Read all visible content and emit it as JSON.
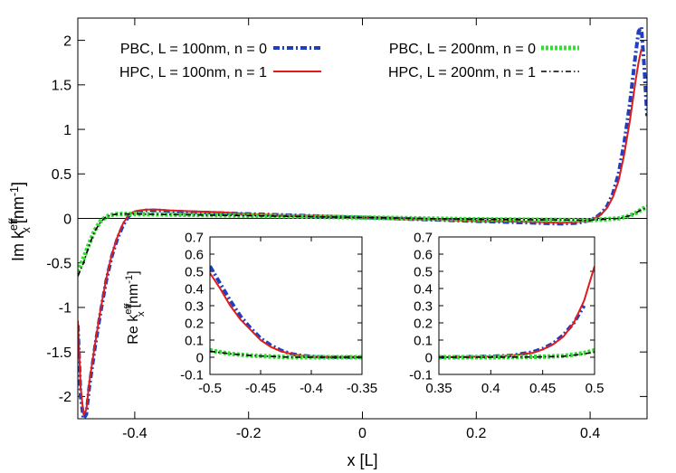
{
  "chart_data": {
    "main": {
      "type": "line",
      "xlabel": "x [L]",
      "ylabel": "Im k",
      "ylabel_sup": "eff",
      "ylabel_sub": "x",
      "ylabel_unit": "[nm",
      "ylabel_unit_sup": "-1",
      "ylabel_unit_close": "]",
      "xlim": [
        -0.5,
        0.5
      ],
      "ylim": [
        -2.25,
        2.25
      ],
      "xticks": [
        -0.4,
        -0.2,
        0,
        0.2,
        0.4
      ],
      "xtick_labels": [
        "-0.4",
        "-0.2",
        "0",
        "0.2",
        "0.4"
      ],
      "yticks": [
        -2,
        -1.5,
        -1,
        -0.5,
        0,
        0.5,
        1,
        1.5,
        2
      ],
      "ytick_labels": [
        "-2",
        "-1.5",
        "-1",
        "-0.5",
        "0",
        "0.5",
        "1",
        "1.5",
        "2"
      ],
      "zero_line": true,
      "legend_placement": "top",
      "series": [
        {
          "name": "PBC, L = 100nm, n = 0",
          "color": "#1f3fbf",
          "style": "dash-dot-thick",
          "x": [
            -0.5,
            -0.495,
            -0.49,
            -0.485,
            -0.48,
            -0.47,
            -0.46,
            -0.45,
            -0.44,
            -0.43,
            -0.42,
            -0.41,
            -0.4,
            -0.38,
            -0.36,
            -0.34,
            -0.3,
            -0.25,
            -0.2,
            -0.1,
            0,
            0.1,
            0.2,
            0.3,
            0.35,
            0.38,
            0.4,
            0.41,
            0.42,
            0.43,
            0.44,
            0.45,
            0.46,
            0.47,
            0.48,
            0.485,
            0.49,
            0.495,
            0.5
          ],
          "y": [
            -1.2,
            -2.0,
            -2.25,
            -2.2,
            -1.9,
            -1.45,
            -1.05,
            -0.7,
            -0.42,
            -0.22,
            -0.07,
            0.03,
            0.07,
            0.09,
            0.09,
            0.08,
            0.07,
            0.06,
            0.05,
            0.03,
            0.01,
            -0.01,
            -0.03,
            -0.05,
            -0.06,
            -0.05,
            -0.02,
            0.01,
            0.06,
            0.14,
            0.28,
            0.5,
            0.85,
            1.3,
            1.85,
            2.1,
            2.15,
            1.7,
            1.15
          ]
        },
        {
          "name": "HPC, L = 100nm, n = 1",
          "color": "#e01c1c",
          "style": "solid",
          "x": [
            -0.5,
            -0.495,
            -0.49,
            -0.485,
            -0.48,
            -0.47,
            -0.46,
            -0.45,
            -0.44,
            -0.43,
            -0.42,
            -0.41,
            -0.4,
            -0.38,
            -0.36,
            -0.34,
            -0.3,
            -0.25,
            -0.2,
            -0.1,
            0,
            0.1,
            0.2,
            0.3,
            0.35,
            0.38,
            0.4,
            0.41,
            0.42,
            0.43,
            0.44,
            0.45,
            0.46,
            0.47,
            0.48,
            0.485,
            0.49
          ],
          "y": [
            -1.15,
            -1.9,
            -2.2,
            -2.15,
            -1.85,
            -1.42,
            -1.02,
            -0.68,
            -0.4,
            -0.2,
            -0.05,
            0.04,
            0.08,
            0.1,
            0.1,
            0.09,
            0.08,
            0.07,
            0.05,
            0.03,
            0.01,
            -0.01,
            -0.03,
            -0.04,
            -0.05,
            -0.04,
            -0.02,
            0.01,
            0.05,
            0.12,
            0.24,
            0.42,
            0.72,
            1.1,
            1.55,
            1.75,
            1.9
          ]
        },
        {
          "name": "PBC, L = 200nm, n = 0",
          "color": "#33dd33",
          "style": "dotted-thick",
          "x": [
            -0.5,
            -0.49,
            -0.48,
            -0.47,
            -0.46,
            -0.45,
            -0.44,
            -0.43,
            -0.42,
            -0.4,
            -0.3,
            -0.2,
            0,
            0.2,
            0.4,
            0.45,
            0.47,
            0.48,
            0.49,
            0.5
          ],
          "y": [
            -0.6,
            -0.45,
            -0.28,
            -0.13,
            -0.03,
            0.02,
            0.04,
            0.05,
            0.05,
            0.05,
            0.04,
            0.03,
            0.01,
            -0.01,
            -0.02,
            0.0,
            0.03,
            0.06,
            0.1,
            0.13
          ]
        },
        {
          "name": "HPC, L = 200nm, n = 1",
          "color": "#000000",
          "style": "dash-dot",
          "x": [
            -0.5,
            -0.49,
            -0.48,
            -0.47,
            -0.46,
            -0.45,
            -0.44,
            -0.43,
            -0.42,
            -0.4,
            -0.3,
            -0.2,
            0,
            0.2,
            0.4,
            0.45,
            0.47,
            0.48,
            0.49,
            0.5
          ],
          "y": [
            -0.65,
            -0.5,
            -0.3,
            -0.14,
            -0.04,
            0.02,
            0.04,
            0.05,
            0.05,
            0.05,
            0.04,
            0.03,
            0.01,
            -0.01,
            -0.02,
            0.0,
            0.03,
            0.06,
            0.1,
            0.12
          ]
        }
      ]
    },
    "inset_left": {
      "type": "line",
      "ylabel": "Re k",
      "ylabel_sup": "eff",
      "ylabel_sub": "x",
      "ylabel_unit": "[nm",
      "ylabel_unit_sup": "-1",
      "ylabel_unit_close": "]",
      "xlim": [
        -0.5,
        -0.35
      ],
      "ylim": [
        -0.1,
        0.7
      ],
      "xticks": [
        -0.5,
        -0.45,
        -0.4,
        -0.35
      ],
      "xtick_labels": [
        "-0.5",
        "-0.45",
        "-0.4",
        "-0.35"
      ],
      "yticks": [
        -0.1,
        0,
        0.1,
        0.2,
        0.3,
        0.4,
        0.5,
        0.6,
        0.7
      ],
      "ytick_labels": [
        "-0.1",
        "0",
        "0.1",
        "0.2",
        "0.3",
        "0.4",
        "0.5",
        "0.6",
        "0.7"
      ],
      "series": [
        {
          "color": "#1f3fbf",
          "style": "dash-dot-thick",
          "x": [
            -0.5,
            -0.49,
            -0.48,
            -0.47,
            -0.46,
            -0.45,
            -0.44,
            -0.43,
            -0.42,
            -0.41,
            -0.4,
            -0.38,
            -0.35
          ],
          "y": [
            0.53,
            0.43,
            0.33,
            0.24,
            0.17,
            0.11,
            0.07,
            0.04,
            0.02,
            0.01,
            0.005,
            0.0,
            0.0
          ]
        },
        {
          "color": "#e01c1c",
          "style": "solid",
          "x": [
            -0.5,
            -0.49,
            -0.48,
            -0.47,
            -0.46,
            -0.45,
            -0.44,
            -0.43,
            -0.42,
            -0.41,
            -0.4,
            -0.38,
            -0.35
          ],
          "y": [
            0.49,
            0.4,
            0.3,
            0.22,
            0.16,
            0.1,
            0.06,
            0.035,
            0.02,
            0.01,
            0.005,
            0.0,
            0.0
          ]
        },
        {
          "color": "#33dd33",
          "style": "dotted-thick",
          "x": [
            -0.5,
            -0.48,
            -0.46,
            -0.44,
            -0.42,
            -0.4,
            -0.35
          ],
          "y": [
            0.04,
            0.02,
            0.01,
            0.005,
            0.0,
            0.0,
            0.0
          ]
        },
        {
          "color": "#000000",
          "style": "dash-dot",
          "x": [
            -0.5,
            -0.48,
            -0.46,
            -0.44,
            -0.42,
            -0.4,
            -0.35
          ],
          "y": [
            0.035,
            0.02,
            0.01,
            0.005,
            0.0,
            0.0,
            0.0
          ]
        }
      ]
    },
    "inset_right": {
      "type": "line",
      "xlim": [
        0.35,
        0.5
      ],
      "ylim": [
        -0.1,
        0.7
      ],
      "xticks": [
        0.35,
        0.4,
        0.45,
        0.5
      ],
      "xtick_labels": [
        "0.35",
        "0.4",
        "0.45",
        "0.5"
      ],
      "yticks": [
        -0.1,
        0,
        0.1,
        0.2,
        0.3,
        0.4,
        0.5,
        0.6,
        0.7
      ],
      "ytick_labels": [
        "-0.1",
        "0",
        "0.1",
        "0.2",
        "0.3",
        "0.4",
        "0.5",
        "0.6",
        "0.7"
      ],
      "series": [
        {
          "color": "#1f3fbf",
          "style": "dash-dot-thick",
          "x": [
            0.35,
            0.4,
            0.42,
            0.44,
            0.45,
            0.46,
            0.47,
            0.48,
            0.49
          ],
          "y": [
            0.0,
            0.005,
            0.01,
            0.03,
            0.05,
            0.08,
            0.13,
            0.2,
            0.3
          ]
        },
        {
          "color": "#e01c1c",
          "style": "solid",
          "x": [
            0.35,
            0.4,
            0.42,
            0.44,
            0.45,
            0.46,
            0.47,
            0.48,
            0.49,
            0.5
          ],
          "y": [
            0.0,
            0.005,
            0.01,
            0.025,
            0.045,
            0.075,
            0.12,
            0.2,
            0.33,
            0.53
          ]
        },
        {
          "color": "#33dd33",
          "style": "dotted-thick",
          "x": [
            0.35,
            0.4,
            0.45,
            0.47,
            0.48,
            0.49,
            0.5
          ],
          "y": [
            0.0,
            0.0,
            0.003,
            0.008,
            0.015,
            0.025,
            0.04
          ]
        },
        {
          "color": "#000000",
          "style": "dash-dot",
          "x": [
            0.35,
            0.4,
            0.45,
            0.47,
            0.48,
            0.49,
            0.5
          ],
          "y": [
            0.0,
            0.0,
            0.002,
            0.006,
            0.012,
            0.02,
            0.03
          ]
        }
      ]
    }
  }
}
